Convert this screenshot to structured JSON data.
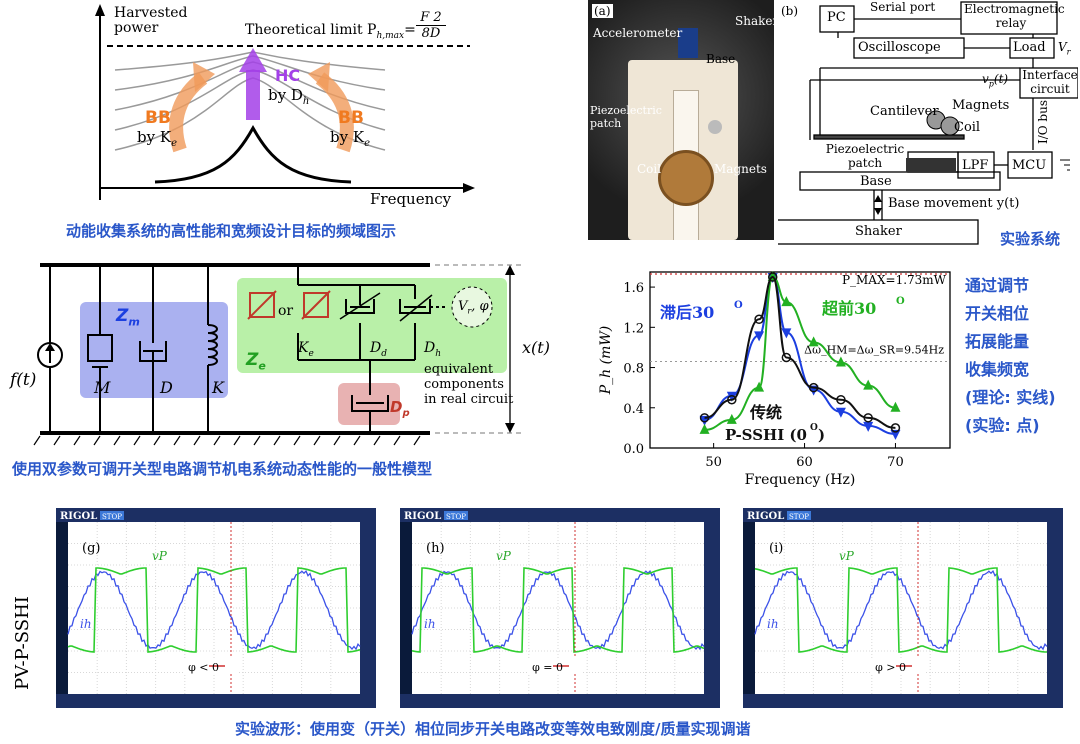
{
  "colors": {
    "accent_blue": "#2a57c9",
    "bb_orange": "#f09a5a",
    "hc_purple": "#a340e8",
    "green": "#2ab52a",
    "model_blue_bg": "#aab1f0",
    "model_green_bg": "#b9f0a8",
    "model_red_bg": "#e8b2b2",
    "scope_green": "#39d139",
    "scope_blue": "#4a66ff"
  },
  "panel_a": {
    "ylabel": "Harvested power",
    "xlabel": "Frequency",
    "limit_text": "Theoretical limit P",
    "limit_sub": "h,max",
    "limit_eq": "=",
    "limit_num": "F 2",
    "limit_den": "8D",
    "hc_label": "HC",
    "hc_by": "by D",
    "hc_sub": "h",
    "bb_label": "BB",
    "bb_by": "by K",
    "bb_sub": "e",
    "caption": "动能收集系统的高性能和宽频设计目标的频域图示"
  },
  "photo": {
    "tag": "(a)",
    "labels": [
      "Accelerometer",
      "Shaker",
      "Base",
      "Piezoelectric patch",
      "Coil",
      "Magnets"
    ]
  },
  "panel_b": {
    "tag": "(b)",
    "pc": "PC",
    "serial": "Serial port",
    "relay": "Electromagnetic relay",
    "osc": "Oscilloscope",
    "load": "Load",
    "vr": "V",
    "vr_sub": "r",
    "vp": "v",
    "vp_sub": "p",
    "vp_t": "(t)",
    "interface": "Interface circuit",
    "iobus": "I/O bus",
    "cantilever": "Cantilever",
    "magnets": "Magnets",
    "coil": "Coil",
    "piezo": "Piezoelectric patch",
    "lpf": "LPF",
    "mcu": "MCU",
    "base": "Base",
    "base_move": "Base movement y(t)",
    "shaker": "Shaker",
    "caption": "实验系统"
  },
  "model": {
    "ft": "f(t)",
    "zm": "Z",
    "zm_sub": "m",
    "m": "M",
    "d": "D",
    "k": "K",
    "ze": "Z",
    "ze_sub": "e",
    "or": "or",
    "ke": "K",
    "ke_sub": "e",
    "dd": "D",
    "dd_sub": "d",
    "dh": "D",
    "dh_sub": "h",
    "vr_phi": "V",
    "vr_phi2": ", φ",
    "equiv": "equivalent",
    "equiv2": "components",
    "equiv3": "in real circuit",
    "zp": "D",
    "zp_sub": "p",
    "xt": "x(t)",
    "caption": "使用双参数可调开关型电路调节机电系统动态性能的一般性模型"
  },
  "chart_data": {
    "type": "line",
    "xlabel": "Frequency (Hz)",
    "ylabel": "P_h (mW)",
    "xlim": [
      43,
      76
    ],
    "ylim": [
      0,
      1.75
    ],
    "xticks": [
      50,
      60,
      70
    ],
    "yticks": [
      0,
      0.4,
      0.8,
      1.2,
      1.6
    ],
    "pmax_label": "P_MAX=1.73mW",
    "pmax": 1.73,
    "delta_label": "Δω_HM=Δω_SR=9.54Hz",
    "delta_level": 0.86,
    "series": [
      {
        "name": "滞后30°",
        "color": "#1c3fe0",
        "x": [
          49,
          52,
          55,
          56.5,
          58,
          61,
          64,
          67,
          70
        ],
        "values": [
          0.28,
          0.52,
          1.12,
          1.7,
          1.15,
          0.58,
          0.36,
          0.22,
          0.14
        ]
      },
      {
        "name": "超前30°",
        "color": "#22b022",
        "x": [
          49,
          52,
          55,
          56.5,
          58,
          61,
          64,
          67,
          70
        ],
        "values": [
          0.18,
          0.28,
          0.6,
          1.7,
          1.45,
          1.05,
          0.85,
          0.62,
          0.4
        ]
      },
      {
        "name": "传统 P-SSHI (0°)",
        "color": "#111111",
        "x": [
          49,
          52,
          55,
          56.5,
          58,
          61,
          64,
          67,
          70
        ],
        "values": [
          0.3,
          0.48,
          1.28,
          1.7,
          0.9,
          0.6,
          0.48,
          0.3,
          0.2
        ]
      }
    ],
    "label_lag": "滞后30",
    "label_lead": "超前30",
    "label_conv1": "传统",
    "label_conv2": "P-SSHI (0",
    "label_deg": "O",
    "label_conv_close": ")"
  },
  "side_text": [
    "通过调节",
    "开关相位",
    "拓展能量",
    "收集频宽",
    "(理论: 实线)",
    "(实验: 点)"
  ],
  "scopes": {
    "row_label": "PV-P-SSHI",
    "brand": "RIGOL",
    "stop": "STOP",
    "items": [
      {
        "tag": "(g)",
        "vp": "v",
        "vp_sub": "P",
        "ih": "i",
        "ih_sub": "h",
        "phi": "φ < 0"
      },
      {
        "tag": "(h)",
        "vp": "v",
        "vp_sub": "P",
        "ih": "i",
        "ih_sub": "h",
        "phi": "φ = 0"
      },
      {
        "tag": "(i)",
        "vp": "v",
        "vp_sub": "P",
        "ih": "i",
        "ih_sub": "h",
        "phi": "φ > 0"
      }
    ],
    "caption": "实验波形：使用变（开关）相位同步开关电路改变等效电致刚度/质量实现调谐"
  }
}
